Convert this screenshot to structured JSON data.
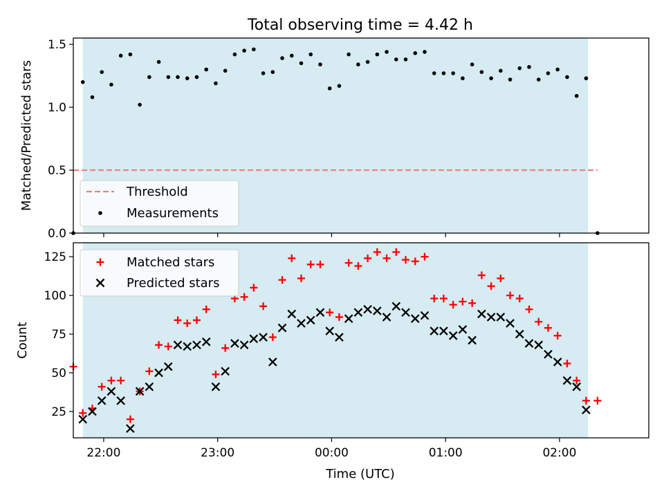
{
  "title": "Total observing time = 4.42 h",
  "colors": {
    "span": "#add8e6",
    "threshold": "#f08080",
    "matched": "#ff0000",
    "predicted": "#000000",
    "measurement": "#000000"
  },
  "chart_data": [
    {
      "type": "scatter",
      "title": "Total observing time = 4.42 h",
      "ylabel": "Matched/Predicted stars",
      "xlabel": "",
      "xlim": [
        "21:44",
        "02:47"
      ],
      "ylim": [
        0,
        1.55
      ],
      "yticks": [
        0.0,
        0.5,
        1.0,
        1.5
      ],
      "ytick_labels": [
        "0.0",
        "0.5",
        "1.0",
        "1.5"
      ],
      "xticks": [
        "22:00",
        "23:00",
        "00:00",
        "01:00",
        "02:00"
      ],
      "grid": false,
      "legend_position": "lower-left",
      "shaded_span": [
        "21:49",
        "02:15"
      ],
      "threshold": {
        "name": "Threshold",
        "value": 0.5,
        "x_range": [
          "21:44",
          "02:20"
        ]
      },
      "series": [
        {
          "name": "Measurements",
          "marker": "dot",
          "x": [
            "21:44",
            "21:49",
            "21:54",
            "21:59",
            "22:04",
            "22:09",
            "22:14",
            "22:19",
            "22:24",
            "22:29",
            "22:34",
            "22:39",
            "22:44",
            "22:49",
            "22:54",
            "22:59",
            "23:04",
            "23:09",
            "23:14",
            "23:19",
            "23:24",
            "23:29",
            "23:34",
            "23:39",
            "23:44",
            "23:49",
            "23:54",
            "23:59",
            "00:04",
            "00:09",
            "00:14",
            "00:19",
            "00:24",
            "00:29",
            "00:34",
            "00:39",
            "00:44",
            "00:49",
            "00:54",
            "00:59",
            "01:04",
            "01:09",
            "01:14",
            "01:19",
            "01:24",
            "01:29",
            "01:34",
            "01:39",
            "01:44",
            "01:49",
            "01:54",
            "01:59",
            "02:04",
            "02:09",
            "02:14",
            "02:20"
          ],
          "y": [
            0.0,
            1.2,
            1.08,
            1.28,
            1.18,
            1.41,
            1.42,
            1.02,
            1.24,
            1.36,
            1.24,
            1.24,
            1.23,
            1.24,
            1.3,
            1.19,
            1.29,
            1.42,
            1.45,
            1.46,
            1.27,
            1.28,
            1.39,
            1.41,
            1.35,
            1.42,
            1.34,
            1.15,
            1.17,
            1.42,
            1.34,
            1.36,
            1.42,
            1.44,
            1.38,
            1.38,
            1.43,
            1.44,
            1.27,
            1.27,
            1.27,
            1.23,
            1.34,
            1.28,
            1.23,
            1.29,
            1.22,
            1.31,
            1.32,
            1.22,
            1.27,
            1.3,
            1.24,
            1.09,
            1.23,
            0.0
          ]
        }
      ]
    },
    {
      "type": "scatter",
      "title": "",
      "xlabel": "Time (UTC)",
      "ylabel": "Count",
      "xlim": [
        "21:44",
        "02:47"
      ],
      "ylim": [
        8,
        134
      ],
      "yticks": [
        25,
        50,
        75,
        100,
        125
      ],
      "ytick_labels": [
        "25",
        "50",
        "75",
        "100",
        "125"
      ],
      "xticks": [
        "22:00",
        "23:00",
        "00:00",
        "01:00",
        "02:00"
      ],
      "grid": false,
      "legend_position": "top-left",
      "shaded_span": [
        "21:49",
        "02:15"
      ],
      "series": [
        {
          "name": "Matched stars",
          "marker": "plus",
          "x": [
            "21:44",
            "21:49",
            "21:54",
            "21:59",
            "22:04",
            "22:09",
            "22:14",
            "22:19",
            "22:24",
            "22:29",
            "22:34",
            "22:39",
            "22:44",
            "22:49",
            "22:54",
            "22:59",
            "23:04",
            "23:09",
            "23:14",
            "23:19",
            "23:24",
            "23:29",
            "23:34",
            "23:39",
            "23:44",
            "23:49",
            "23:54",
            "23:59",
            "00:04",
            "00:09",
            "00:14",
            "00:19",
            "00:24",
            "00:29",
            "00:34",
            "00:39",
            "00:44",
            "00:49",
            "00:54",
            "00:59",
            "01:04",
            "01:09",
            "01:14",
            "01:19",
            "01:24",
            "01:29",
            "01:34",
            "01:39",
            "01:44",
            "01:49",
            "01:54",
            "01:59",
            "02:04",
            "02:09",
            "02:14",
            "02:20"
          ],
          "y": [
            54,
            24,
            27,
            41,
            45,
            45,
            20,
            38,
            51,
            68,
            67,
            84,
            82,
            84,
            91,
            49,
            66,
            98,
            99,
            105,
            93,
            73,
            110,
            124,
            111,
            120,
            120,
            89,
            86,
            121,
            119,
            124,
            128,
            124,
            128,
            123,
            122,
            125,
            98,
            98,
            94,
            96,
            95,
            113,
            106,
            111,
            100,
            98,
            91,
            83,
            79,
            74,
            56,
            45,
            32,
            32
          ]
        },
        {
          "name": "Predicted stars",
          "marker": "x",
          "x": [
            "21:49",
            "21:54",
            "21:59",
            "22:04",
            "22:09",
            "22:14",
            "22:19",
            "22:24",
            "22:29",
            "22:34",
            "22:39",
            "22:44",
            "22:49",
            "22:54",
            "22:59",
            "23:04",
            "23:09",
            "23:14",
            "23:19",
            "23:24",
            "23:29",
            "23:34",
            "23:39",
            "23:44",
            "23:49",
            "23:54",
            "23:59",
            "00:04",
            "00:09",
            "00:14",
            "00:19",
            "00:24",
            "00:29",
            "00:34",
            "00:39",
            "00:44",
            "00:49",
            "00:54",
            "00:59",
            "01:04",
            "01:09",
            "01:14",
            "01:19",
            "01:24",
            "01:29",
            "01:34",
            "01:39",
            "01:44",
            "01:49",
            "01:54",
            "01:59",
            "02:04",
            "02:09",
            "02:14"
          ],
          "y": [
            20,
            25,
            32,
            38,
            32,
            14,
            38,
            41,
            50,
            54,
            68,
            67,
            68,
            70,
            41,
            51,
            69,
            68,
            72,
            73,
            57,
            79,
            88,
            82,
            84,
            89,
            77,
            73,
            85,
            89,
            91,
            90,
            86,
            93,
            89,
            85,
            87,
            77,
            77,
            74,
            78,
            71,
            88,
            86,
            86,
            82,
            75,
            69,
            68,
            62,
            57,
            45,
            41,
            26
          ]
        }
      ]
    }
  ]
}
